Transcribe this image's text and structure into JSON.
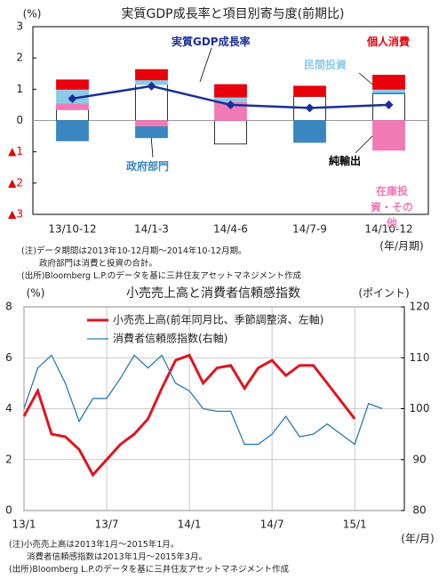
{
  "chart_data": [
    {
      "type": "bar",
      "stacked": true,
      "title": "実質GDP成長率と項目別寄与度(前期比)",
      "y_label": "(%)",
      "x_label": "(年/月期)",
      "categories": [
        "13/10-12",
        "14/1-3",
        "14/4-6",
        "14/7-9",
        "14/10-12"
      ],
      "series": [
        {
          "name": "純輸出",
          "type": "bar",
          "color": "#ffffff",
          "edgecolor": "#000000",
          "values": [
            0.35,
            1.15,
            -0.75,
            0.77,
            0.85
          ]
        },
        {
          "name": "在庫投資・その他",
          "type": "bar",
          "color": "#f07ab4",
          "values": [
            0.2,
            -0.2,
            0.6,
            0,
            -0.95
          ]
        },
        {
          "name": "政府部門",
          "type": "bar",
          "color": "#3a86c0",
          "values": [
            -0.65,
            -0.35,
            0,
            -0.7,
            0.05
          ]
        },
        {
          "name": "民間投資",
          "type": "bar",
          "color": "#8ccbe8",
          "values": [
            0.45,
            0.15,
            0.15,
            0,
            0.1
          ]
        },
        {
          "name": "個人消費",
          "type": "bar",
          "color": "#e8000b",
          "values": [
            0.3,
            0.33,
            0.4,
            0.33,
            0.45
          ]
        },
        {
          "name": "実質GDP成長率",
          "type": "line",
          "color": "#1a2f9a",
          "values": [
            0.7,
            1.1,
            0.5,
            0.4,
            0.5
          ]
        }
      ],
      "ylim": [
        -3,
        3
      ],
      "yticks": [
        {
          "value": -3,
          "label": "▲3"
        },
        {
          "value": -2,
          "label": "▲2"
        },
        {
          "value": -1,
          "label": "▲1"
        },
        0,
        1,
        2,
        3
      ],
      "notes": [
        "(注)データ期間は2013年10-12月期～2014年10-12月期。",
        "政府部門は消費と投資の合計。",
        "(出所)Bloomberg L.P.のデータを基に三井住友アセットマネジメント作成"
      ]
    },
    {
      "type": "line",
      "title": "小売売上高と消費者信頼感指数",
      "y_label": "(%)",
      "y2_label": "(ポイント)",
      "x_label": "(年/月)",
      "x": [
        "13/1",
        "13/2",
        "13/3",
        "13/4",
        "13/5",
        "13/6",
        "13/7",
        "13/8",
        "13/9",
        "13/10",
        "13/11",
        "13/12",
        "14/1",
        "14/2",
        "14/3",
        "14/4",
        "14/5",
        "14/6",
        "14/7",
        "14/8",
        "14/9",
        "14/10",
        "14/11",
        "14/12",
        "15/1",
        "15/2",
        "15/3"
      ],
      "xticks": [
        "13/1",
        "13/7",
        "14/1",
        "14/7",
        "15/1"
      ],
      "series": [
        {
          "name": "小売売上高(前年同月比、季節調整済、左軸)",
          "color": "#e0141e",
          "values": [
            3.7,
            4.7,
            3.0,
            2.9,
            2.4,
            1.4,
            2.0,
            2.6,
            3.0,
            3.6,
            4.8,
            5.9,
            6.1,
            5.0,
            5.6,
            5.7,
            4.8,
            5.6,
            5.9,
            5.3,
            5.7,
            5.7,
            5.0,
            4.3,
            3.6,
            null,
            null
          ]
        },
        {
          "name": "消費者信頼感指数(右軸)",
          "color": "#2a7ab8",
          "axis": "y2",
          "values": [
            100,
            108,
            110.5,
            105,
            97.5,
            102,
            102,
            106,
            110.5,
            108,
            110.5,
            105,
            103.5,
            100,
            99.5,
            99.5,
            93,
            93,
            95,
            98.5,
            94.5,
            95,
            97,
            95,
            93,
            101,
            100
          ]
        }
      ],
      "ylim": [
        0,
        8
      ],
      "yticks": [
        0,
        2,
        4,
        6,
        8
      ],
      "y2lim": [
        80,
        120
      ],
      "y2ticks": [
        80,
        90,
        100,
        110,
        120
      ],
      "grid": true,
      "notes": [
        "(注)小売売上高は2013年1月～2015年1月。",
        "消費者信頼感指数は2013年1月～2015年3月。",
        "(出所)Bloomberg L.P.のデータを基に三井住友アセットマネジメント作成"
      ]
    }
  ]
}
